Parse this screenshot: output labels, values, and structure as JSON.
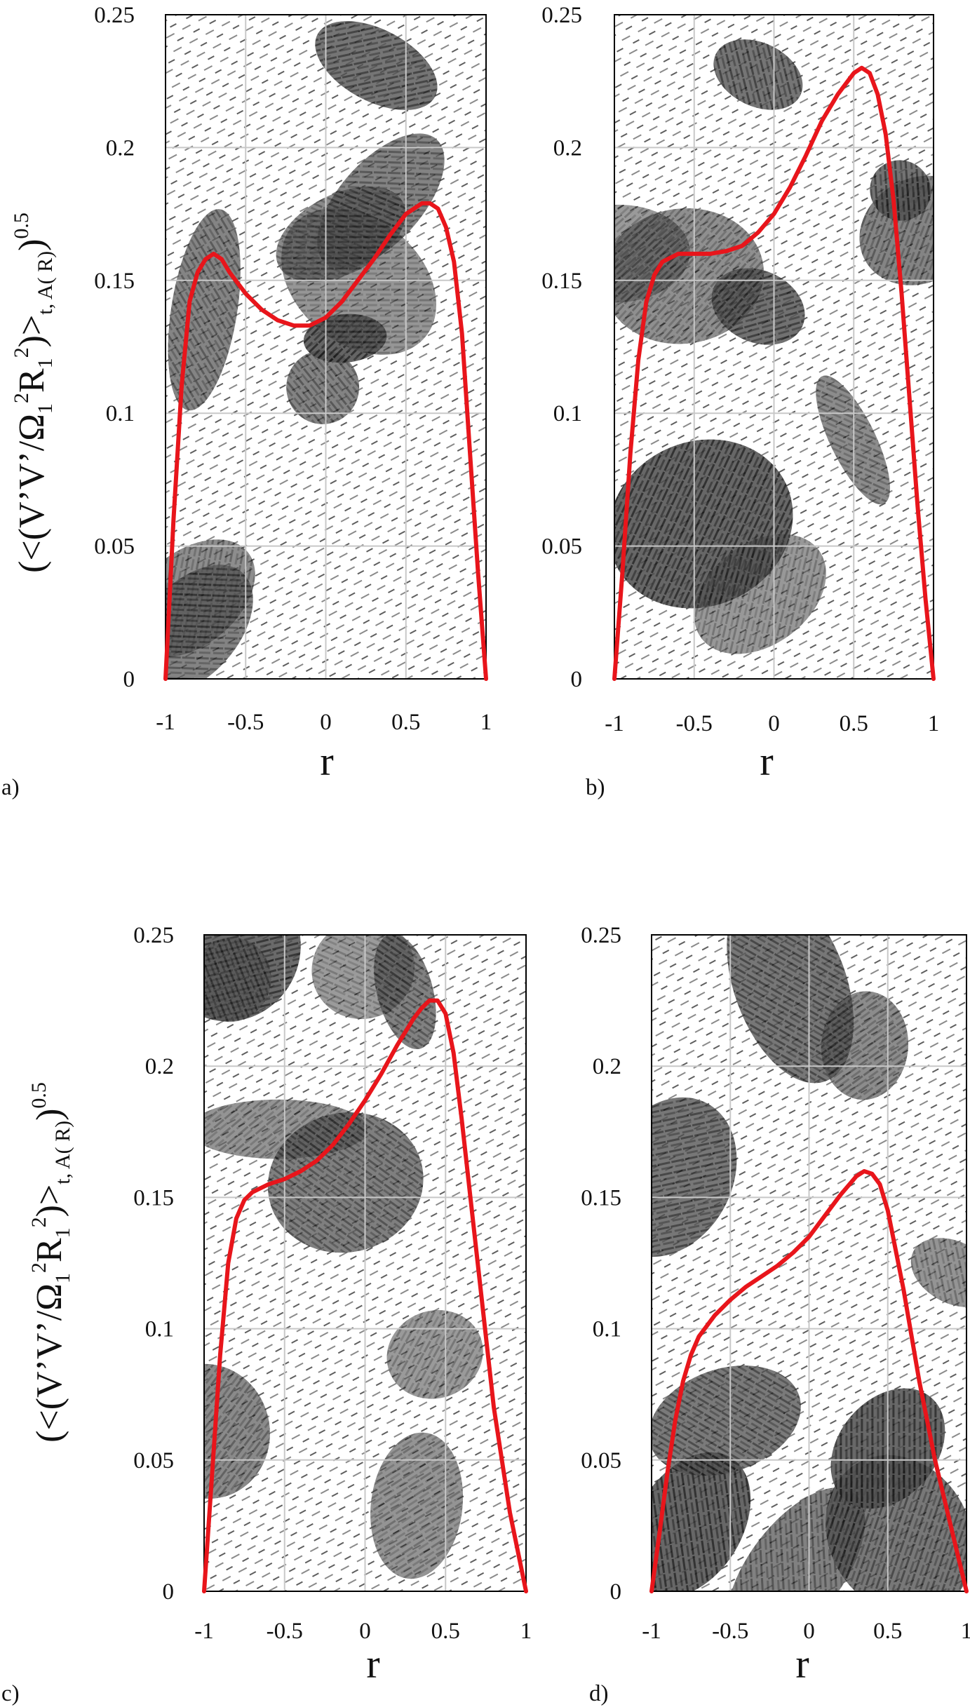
{
  "figure": {
    "ylabel_parts": {
      "main": "(<(V’V’/Ω",
      "sub1": "1",
      "sup2a": "2",
      "R": "R",
      "sub1b": "1",
      "sup2b": "2",
      "close": ")>",
      "subscript": "t, A( R)",
      "close2": ")",
      "power": "0.5"
    },
    "line_color": "#e8151b"
  },
  "chart_data": [
    {
      "type": "line",
      "panel_label": "a)",
      "xlabel": "r",
      "ylabel": "(<(V’V’/Ω1²R1²)>t, A( R))^0.5",
      "xlim": [
        -1,
        1
      ],
      "ylim": [
        0,
        0.25
      ],
      "x_ticks": [
        "-1",
        "-0.5",
        "0",
        "0.5",
        "1"
      ],
      "y_ticks": [
        "0",
        "0.05",
        "0.1",
        "0.15",
        "0.2",
        "0.25"
      ],
      "grid": true,
      "background": "velocity vector field",
      "series": [
        {
          "x": [
            -1.0,
            -0.95,
            -0.9,
            -0.85,
            -0.8,
            -0.75,
            -0.7,
            -0.65,
            -0.6,
            -0.5,
            -0.4,
            -0.3,
            -0.2,
            -0.1,
            0.0,
            0.1,
            0.2,
            0.3,
            0.4,
            0.5,
            0.6,
            0.65,
            0.7,
            0.75,
            0.8,
            0.85,
            0.9,
            0.95,
            1.0
          ],
          "y": [
            0.0,
            0.06,
            0.11,
            0.142,
            0.153,
            0.158,
            0.16,
            0.158,
            0.153,
            0.145,
            0.139,
            0.135,
            0.133,
            0.133,
            0.136,
            0.142,
            0.15,
            0.158,
            0.167,
            0.175,
            0.179,
            0.179,
            0.177,
            0.17,
            0.157,
            0.13,
            0.085,
            0.04,
            0.0
          ]
        }
      ]
    },
    {
      "type": "line",
      "panel_label": "b)",
      "xlabel": "r",
      "ylabel": "",
      "xlim": [
        -1,
        1
      ],
      "ylim": [
        0,
        0.25
      ],
      "x_ticks": [
        "-1",
        "-0.5",
        "0",
        "0.5",
        "1"
      ],
      "y_ticks": [
        "0",
        "0.05",
        "0.1",
        "0.15",
        "0.2",
        "0.25"
      ],
      "grid": true,
      "background": "velocity vector field",
      "series": [
        {
          "x": [
            -1.0,
            -0.95,
            -0.9,
            -0.85,
            -0.8,
            -0.75,
            -0.7,
            -0.6,
            -0.5,
            -0.4,
            -0.3,
            -0.2,
            -0.1,
            0.0,
            0.1,
            0.2,
            0.3,
            0.4,
            0.5,
            0.55,
            0.6,
            0.65,
            0.7,
            0.75,
            0.8,
            0.85,
            0.9,
            0.95,
            1.0
          ],
          "y": [
            0.0,
            0.04,
            0.085,
            0.12,
            0.142,
            0.152,
            0.157,
            0.16,
            0.16,
            0.16,
            0.161,
            0.163,
            0.168,
            0.175,
            0.185,
            0.197,
            0.21,
            0.22,
            0.228,
            0.23,
            0.228,
            0.22,
            0.205,
            0.18,
            0.145,
            0.105,
            0.065,
            0.03,
            0.0
          ]
        }
      ]
    },
    {
      "type": "line",
      "panel_label": "c)",
      "xlabel": "r",
      "ylabel": "(<(V’V’/Ω1²R1²)>t, A( R))^0.5",
      "xlim": [
        -1,
        1
      ],
      "ylim": [
        0,
        0.25
      ],
      "x_ticks": [
        "-1",
        "-0.5",
        "0",
        "0.5",
        "1"
      ],
      "y_ticks": [
        "0",
        "0.05",
        "0.1",
        "0.15",
        "0.2",
        "0.25"
      ],
      "grid": true,
      "background": "velocity vector field",
      "series": [
        {
          "x": [
            -1.0,
            -0.95,
            -0.9,
            -0.85,
            -0.8,
            -0.75,
            -0.7,
            -0.6,
            -0.5,
            -0.4,
            -0.3,
            -0.2,
            -0.1,
            0.0,
            0.1,
            0.2,
            0.3,
            0.35,
            0.4,
            0.45,
            0.5,
            0.55,
            0.6,
            0.7,
            0.8,
            0.9,
            1.0
          ],
          "y": [
            0.0,
            0.045,
            0.09,
            0.125,
            0.142,
            0.149,
            0.152,
            0.155,
            0.157,
            0.16,
            0.164,
            0.17,
            0.178,
            0.187,
            0.197,
            0.208,
            0.218,
            0.222,
            0.225,
            0.225,
            0.22,
            0.205,
            0.18,
            0.125,
            0.07,
            0.03,
            0.0
          ]
        }
      ]
    },
    {
      "type": "line",
      "panel_label": "d)",
      "xlabel": "r",
      "ylabel": "",
      "xlim": [
        -1,
        1
      ],
      "ylim": [
        0,
        0.25
      ],
      "x_ticks": [
        "-1",
        "-0.5",
        "0",
        "0.5",
        "1"
      ],
      "y_ticks": [
        "0",
        "0.05",
        "0.1",
        "0.15",
        "0.2",
        "0.25"
      ],
      "grid": true,
      "background": "velocity vector field",
      "series": [
        {
          "x": [
            -1.0,
            -0.95,
            -0.9,
            -0.85,
            -0.8,
            -0.75,
            -0.7,
            -0.6,
            -0.5,
            -0.4,
            -0.3,
            -0.2,
            -0.1,
            0.0,
            0.1,
            0.2,
            0.3,
            0.35,
            0.4,
            0.45,
            0.5,
            0.6,
            0.7,
            0.8,
            0.9,
            1.0
          ],
          "y": [
            0.0,
            0.022,
            0.045,
            0.065,
            0.08,
            0.09,
            0.097,
            0.105,
            0.111,
            0.116,
            0.12,
            0.124,
            0.129,
            0.135,
            0.143,
            0.151,
            0.158,
            0.16,
            0.159,
            0.155,
            0.145,
            0.115,
            0.08,
            0.05,
            0.025,
            0.0
          ]
        }
      ]
    }
  ]
}
